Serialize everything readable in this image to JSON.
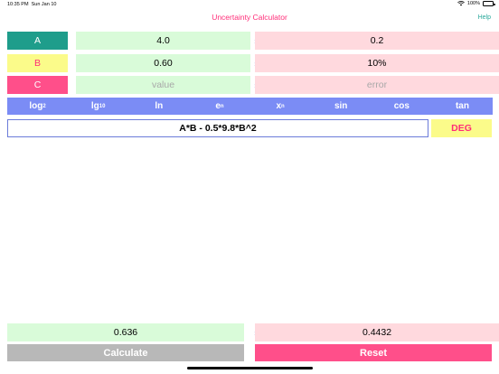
{
  "status_bar": {
    "time": "10:35 PM",
    "date": "Sun Jan 10",
    "battery": "100%"
  },
  "nav": {
    "title": "Uncertainty Calculator",
    "help": "Help"
  },
  "variables": [
    {
      "name": "A",
      "value": "4.0",
      "error": "0.2",
      "color": "#1e9d8b",
      "text_color": "#ffffff"
    },
    {
      "name": "B",
      "value": "0.60",
      "error": "10%",
      "color": "#fbfb8a",
      "text_color": "#ff2d78"
    },
    {
      "name": "C",
      "value_placeholder": "value",
      "error_placeholder": "error",
      "color": "#ff4f8a",
      "text_color": "#ffffff"
    }
  ],
  "plus_minus": "±",
  "functions": [
    "log",
    "lg",
    "ln",
    "e",
    "x",
    "sin",
    "cos",
    "tan"
  ],
  "function_subs": {
    "log": "2",
    "lg": "10"
  },
  "function_sups": {
    "e": "n",
    "x": "n"
  },
  "expression": "A*B - 0.5*9.8*B^2",
  "angle_mode": "DEG",
  "result": {
    "value": "0.636",
    "error": "0.4432"
  },
  "buttons": {
    "calculate": "Calculate",
    "reset": "Reset"
  }
}
